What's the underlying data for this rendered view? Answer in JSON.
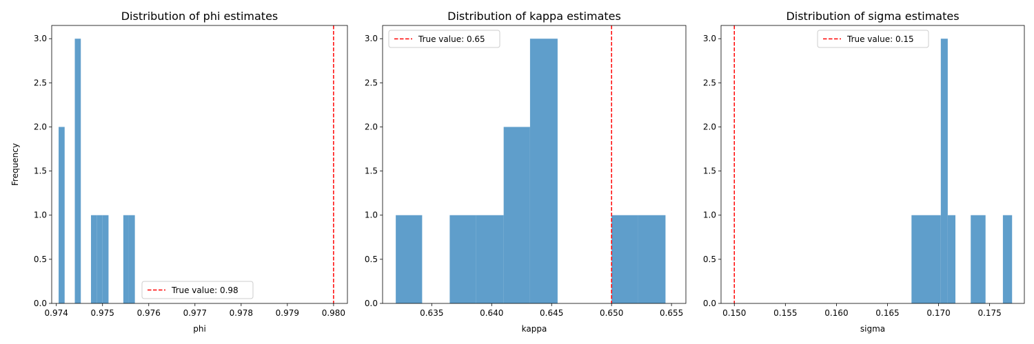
{
  "colors": {
    "bar": "#5f9ecb",
    "true_line": "#ff0000",
    "axis": "#000000"
  },
  "chart_data": [
    {
      "type": "bar",
      "title": "Distribution of phi estimates",
      "xlabel": "phi",
      "ylabel": "Frequency",
      "xlim": [
        0.9739,
        0.9803
      ],
      "ylim": [
        0,
        3.15
      ],
      "xticks": [
        0.974,
        0.975,
        0.976,
        0.977,
        0.978,
        0.979,
        0.98
      ],
      "xtick_labels": [
        "0.974",
        "0.975",
        "0.976",
        "0.977",
        "0.978",
        "0.979",
        "0.980"
      ],
      "yticks": [
        0.0,
        0.5,
        1.0,
        1.5,
        2.0,
        2.5,
        3.0
      ],
      "ytick_labels": [
        "0.0",
        "0.5",
        "1.0",
        "1.5",
        "2.0",
        "2.5",
        "3.0"
      ],
      "bins": [
        {
          "x0": 0.97405,
          "x1": 0.97418,
          "count": 2
        },
        {
          "x0": 0.9744,
          "x1": 0.97453,
          "count": 3
        },
        {
          "x0": 0.97475,
          "x1": 0.97488,
          "count": 1
        },
        {
          "x0": 0.97488,
          "x1": 0.975,
          "count": 1
        },
        {
          "x0": 0.975,
          "x1": 0.97513,
          "count": 1
        },
        {
          "x0": 0.97545,
          "x1": 0.97557,
          "count": 1
        },
        {
          "x0": 0.97557,
          "x1": 0.9757,
          "count": 1
        }
      ],
      "true_value": 0.98,
      "legend_label": "True value: 0.98",
      "legend_position": "bottom-center"
    },
    {
      "type": "bar",
      "title": "Distribution of kappa estimates",
      "xlabel": "kappa",
      "ylabel": "",
      "xlim": [
        0.6309,
        0.6562
      ],
      "ylim": [
        0,
        3.15
      ],
      "xticks": [
        0.635,
        0.64,
        0.645,
        0.65,
        0.655
      ],
      "xtick_labels": [
        "0.635",
        "0.640",
        "0.645",
        "0.650",
        "0.655"
      ],
      "yticks": [
        0.0,
        0.5,
        1.0,
        1.5,
        2.0,
        2.5,
        3.0
      ],
      "ytick_labels": [
        "0.0",
        "0.5",
        "1.0",
        "1.5",
        "2.0",
        "2.5",
        "3.0"
      ],
      "bins": [
        {
          "x0": 0.632,
          "x1": 0.6342,
          "count": 1
        },
        {
          "x0": 0.6365,
          "x1": 0.6387,
          "count": 1
        },
        {
          "x0": 0.6387,
          "x1": 0.641,
          "count": 1
        },
        {
          "x0": 0.641,
          "x1": 0.6432,
          "count": 2
        },
        {
          "x0": 0.6432,
          "x1": 0.6455,
          "count": 3
        },
        {
          "x0": 0.65,
          "x1": 0.6522,
          "count": 1
        },
        {
          "x0": 0.6522,
          "x1": 0.6545,
          "count": 1
        }
      ],
      "true_value": 0.65,
      "legend_label": "True value: 0.65",
      "legend_position": "top-left"
    },
    {
      "type": "bar",
      "title": "Distribution of sigma estimates",
      "xlabel": "sigma",
      "ylabel": "",
      "xlim": [
        0.1487,
        0.1784
      ],
      "ylim": [
        0,
        3.15
      ],
      "xticks": [
        0.15,
        0.155,
        0.16,
        0.165,
        0.17,
        0.175
      ],
      "xtick_labels": [
        "0.150",
        "0.155",
        "0.160",
        "0.165",
        "0.170",
        "0.175"
      ],
      "yticks": [
        0.0,
        0.5,
        1.0,
        1.5,
        2.0,
        2.5,
        3.0
      ],
      "ytick_labels": [
        "0.0",
        "0.5",
        "1.0",
        "1.5",
        "2.0",
        "2.5",
        "3.0"
      ],
      "bins": [
        {
          "x0": 0.16735,
          "x1": 0.16878,
          "count": 1
        },
        {
          "x0": 0.16878,
          "x1": 0.17022,
          "count": 1
        },
        {
          "x0": 0.17022,
          "x1": 0.1709,
          "count": 3
        },
        {
          "x0": 0.1709,
          "x1": 0.17165,
          "count": 1
        },
        {
          "x0": 0.17315,
          "x1": 0.1746,
          "count": 1
        },
        {
          "x0": 0.1763,
          "x1": 0.1772,
          "count": 1
        }
      ],
      "true_value": 0.15,
      "legend_label": "True value: 0.15",
      "legend_position": "top-center"
    }
  ]
}
